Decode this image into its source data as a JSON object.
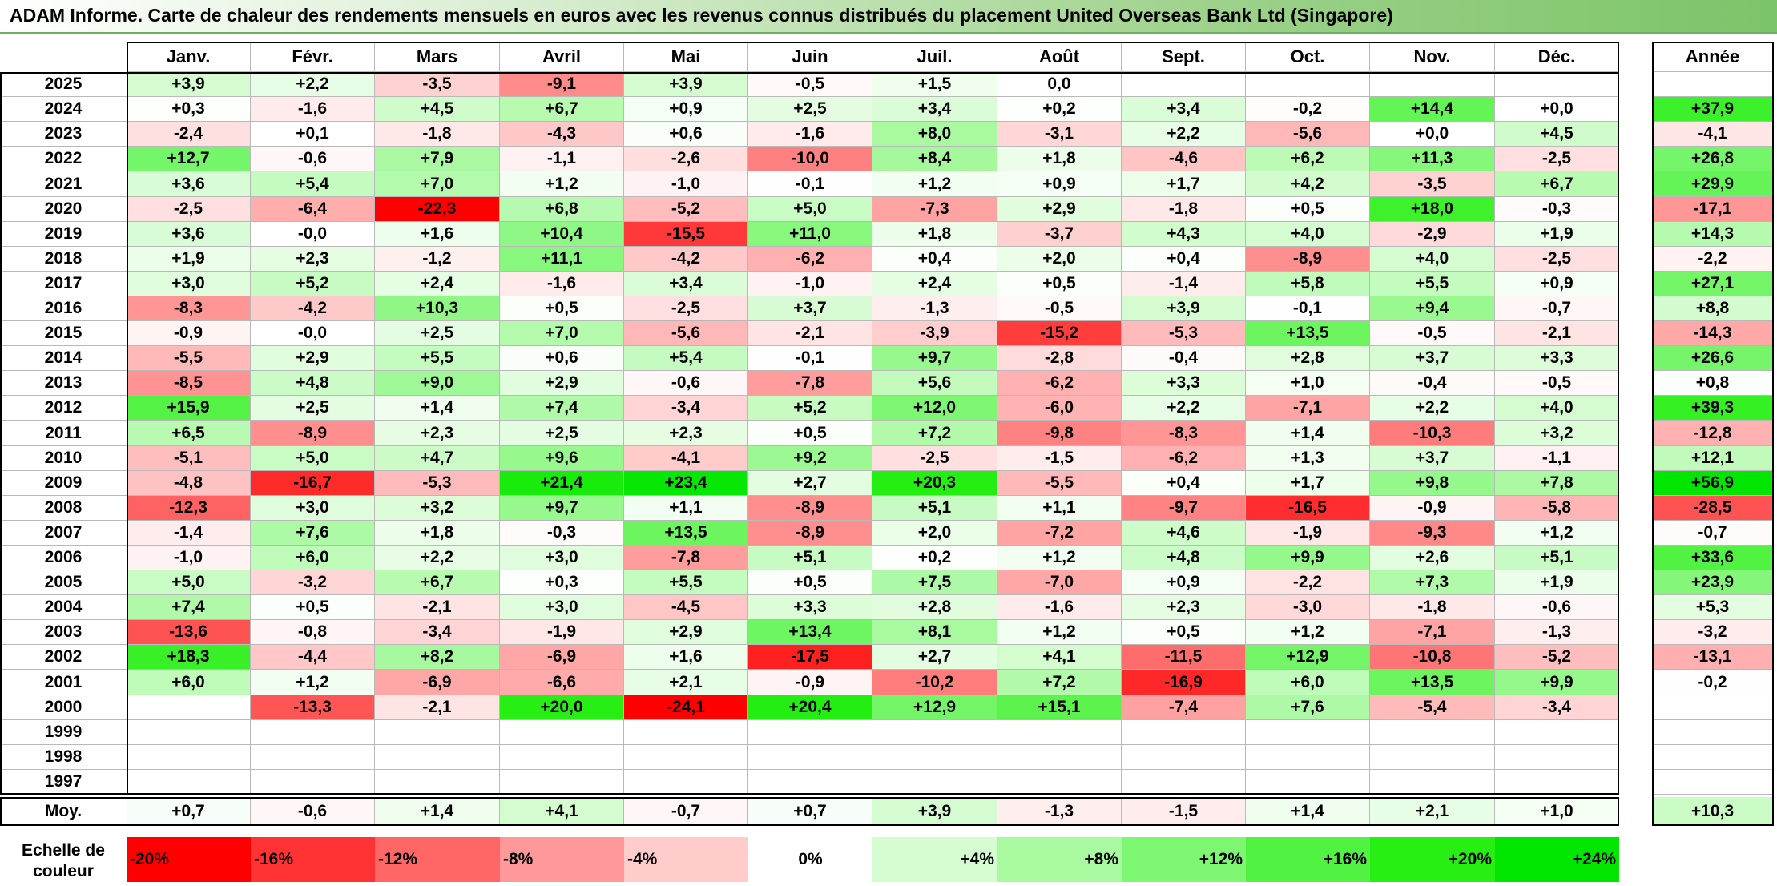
{
  "title": "ADAM Informe. Carte de chaleur des rendements mensuels en euros avec les revenus connus distribués du placement United Overseas Bank Ltd (Singapore)",
  "chart_data": {
    "type": "heatmap",
    "columns": [
      "Janv.",
      "Févr.",
      "Mars",
      "Avril",
      "Mai",
      "Juin",
      "Juil.",
      "Août",
      "Sept.",
      "Oct.",
      "Nov.",
      "Déc."
    ],
    "year_column_label": "Année",
    "average_label": "Moy.",
    "rows": [
      {
        "year": "2025",
        "months": [
          "+3,9",
          "+2,2",
          "-3,5",
          "-9,1",
          "+3,9",
          "-0,5",
          "+1,5",
          "0,0",
          "",
          "",
          "",
          ""
        ],
        "annual": ""
      },
      {
        "year": "2024",
        "months": [
          "+0,3",
          "-1,6",
          "+4,5",
          "+6,7",
          "+0,9",
          "+2,5",
          "+3,4",
          "+0,2",
          "+3,4",
          "-0,2",
          "+14,4",
          "+0,0"
        ],
        "annual": "+37,9"
      },
      {
        "year": "2023",
        "months": [
          "-2,4",
          "+0,1",
          "-1,8",
          "-4,3",
          "+0,6",
          "-1,6",
          "+8,0",
          "-3,1",
          "+2,2",
          "-5,6",
          "+0,0",
          "+4,5"
        ],
        "annual": "-4,1"
      },
      {
        "year": "2022",
        "months": [
          "+12,7",
          "-0,6",
          "+7,9",
          "-1,1",
          "-2,6",
          "-10,0",
          "+8,4",
          "+1,8",
          "-4,6",
          "+6,2",
          "+11,3",
          "-2,5"
        ],
        "annual": "+26,8"
      },
      {
        "year": "2021",
        "months": [
          "+3,6",
          "+5,4",
          "+7,0",
          "+1,2",
          "-1,0",
          "-0,1",
          "+1,2",
          "+0,9",
          "+1,7",
          "+4,2",
          "-3,5",
          "+6,7"
        ],
        "annual": "+29,9"
      },
      {
        "year": "2020",
        "months": [
          "-2,5",
          "-6,4",
          "-22,3",
          "+6,8",
          "-5,2",
          "+5,0",
          "-7,3",
          "+2,9",
          "-1,8",
          "+0,5",
          "+18,0",
          "-0,3"
        ],
        "annual": "-17,1"
      },
      {
        "year": "2019",
        "months": [
          "+3,6",
          "-0,0",
          "+1,6",
          "+10,4",
          "-15,5",
          "+11,0",
          "+1,8",
          "-3,7",
          "+4,3",
          "+4,0",
          "-2,9",
          "+1,9"
        ],
        "annual": "+14,3"
      },
      {
        "year": "2018",
        "months": [
          "+1,9",
          "+2,3",
          "-1,2",
          "+11,1",
          "-4,2",
          "-6,2",
          "+0,4",
          "+2,0",
          "+0,4",
          "-8,9",
          "+4,0",
          "-2,5"
        ],
        "annual": "-2,2"
      },
      {
        "year": "2017",
        "months": [
          "+3,0",
          "+5,2",
          "+2,4",
          "-1,6",
          "+3,4",
          "-1,0",
          "+2,4",
          "+0,5",
          "-1,4",
          "+5,8",
          "+5,5",
          "+0,9"
        ],
        "annual": "+27,1"
      },
      {
        "year": "2016",
        "months": [
          "-8,3",
          "-4,2",
          "+10,3",
          "+0,5",
          "-2,5",
          "+3,7",
          "-1,3",
          "-0,5",
          "+3,9",
          "-0,1",
          "+9,4",
          "-0,7"
        ],
        "annual": "+8,8"
      },
      {
        "year": "2015",
        "months": [
          "-0,9",
          "-0,0",
          "+2,5",
          "+7,0",
          "-5,6",
          "-2,1",
          "-3,9",
          "-15,2",
          "-5,3",
          "+13,5",
          "-0,5",
          "-2,1"
        ],
        "annual": "-14,3"
      },
      {
        "year": "2014",
        "months": [
          "-5,5",
          "+2,9",
          "+5,5",
          "+0,6",
          "+5,4",
          "-0,1",
          "+9,7",
          "-2,8",
          "-0,4",
          "+2,8",
          "+3,7",
          "+3,3"
        ],
        "annual": "+26,6"
      },
      {
        "year": "2013",
        "months": [
          "-8,5",
          "+4,8",
          "+9,0",
          "+2,9",
          "-0,6",
          "-7,8",
          "+5,6",
          "-6,2",
          "+3,3",
          "+1,0",
          "-0,4",
          "-0,5"
        ],
        "annual": "+0,8"
      },
      {
        "year": "2012",
        "months": [
          "+15,9",
          "+2,5",
          "+1,4",
          "+7,4",
          "-3,4",
          "+5,2",
          "+12,0",
          "-6,0",
          "+2,2",
          "-7,1",
          "+2,2",
          "+4,0"
        ],
        "annual": "+39,3"
      },
      {
        "year": "2011",
        "months": [
          "+6,5",
          "-8,9",
          "+2,3",
          "+2,5",
          "+2,3",
          "+0,5",
          "+7,2",
          "-9,8",
          "-8,3",
          "+1,4",
          "-10,3",
          "+3,2"
        ],
        "annual": "-12,8"
      },
      {
        "year": "2010",
        "months": [
          "-5,1",
          "+5,0",
          "+4,7",
          "+9,6",
          "-4,1",
          "+9,2",
          "-2,5",
          "-1,5",
          "-6,2",
          "+1,3",
          "+3,7",
          "-1,1"
        ],
        "annual": "+12,1"
      },
      {
        "year": "2009",
        "months": [
          "-4,8",
          "-16,7",
          "-5,3",
          "+21,4",
          "+23,4",
          "+2,7",
          "+20,3",
          "-5,5",
          "+0,4",
          "+1,7",
          "+9,8",
          "+7,8"
        ],
        "annual": "+56,9"
      },
      {
        "year": "2008",
        "months": [
          "-12,3",
          "+3,0",
          "+3,2",
          "+9,7",
          "+1,1",
          "-8,9",
          "+5,1",
          "+1,1",
          "-9,7",
          "-16,5",
          "-0,9",
          "-5,8"
        ],
        "annual": "-28,5"
      },
      {
        "year": "2007",
        "months": [
          "-1,4",
          "+7,6",
          "+1,8",
          "-0,3",
          "+13,5",
          "-8,9",
          "+2,0",
          "-7,2",
          "+4,6",
          "-1,9",
          "-9,3",
          "+1,2"
        ],
        "annual": "-0,7"
      },
      {
        "year": "2006",
        "months": [
          "-1,0",
          "+6,0",
          "+2,2",
          "+3,0",
          "-7,8",
          "+5,1",
          "+0,2",
          "+1,2",
          "+4,8",
          "+9,9",
          "+2,6",
          "+5,1"
        ],
        "annual": "+33,6"
      },
      {
        "year": "2005",
        "months": [
          "+5,0",
          "-3,2",
          "+6,7",
          "+0,3",
          "+5,5",
          "+0,5",
          "+7,5",
          "-7,0",
          "+0,9",
          "-2,2",
          "+7,3",
          "+1,9"
        ],
        "annual": "+23,9"
      },
      {
        "year": "2004",
        "months": [
          "+7,4",
          "+0,5",
          "-2,1",
          "+3,0",
          "-4,5",
          "+3,3",
          "+2,8",
          "-1,6",
          "+2,3",
          "-3,0",
          "-1,8",
          "-0,6"
        ],
        "annual": "+5,3"
      },
      {
        "year": "2003",
        "months": [
          "-13,6",
          "-0,8",
          "-3,4",
          "-1,9",
          "+2,9",
          "+13,4",
          "+8,1",
          "+1,2",
          "+0,5",
          "+1,2",
          "-7,1",
          "-1,3"
        ],
        "annual": "-3,2"
      },
      {
        "year": "2002",
        "months": [
          "+18,3",
          "-4,4",
          "+8,2",
          "-6,9",
          "+1,6",
          "-17,5",
          "+2,7",
          "+4,1",
          "-11,5",
          "+12,9",
          "-10,8",
          "-5,2"
        ],
        "annual": "-13,1"
      },
      {
        "year": "2001",
        "months": [
          "+6,0",
          "+1,2",
          "-6,9",
          "-6,6",
          "+2,1",
          "-0,9",
          "-10,2",
          "+7,2",
          "-16,9",
          "+6,0",
          "+13,5",
          "+9,9"
        ],
        "annual": "-0,2"
      },
      {
        "year": "2000",
        "months": [
          "",
          "-13,3",
          "-2,1",
          "+20,0",
          "-24,1",
          "+20,4",
          "+12,9",
          "+15,1",
          "-7,4",
          "+7,6",
          "-5,4",
          "-3,4"
        ],
        "annual": ""
      },
      {
        "year": "1999",
        "months": [
          "",
          "",
          "",
          "",
          "",
          "",
          "",
          "",
          "",
          "",
          "",
          ""
        ],
        "annual": ""
      },
      {
        "year": "1998",
        "months": [
          "",
          "",
          "",
          "",
          "",
          "",
          "",
          "",
          "",
          "",
          "",
          ""
        ],
        "annual": ""
      },
      {
        "year": "1997",
        "months": [
          "",
          "",
          "",
          "",
          "",
          "",
          "",
          "",
          "",
          "",
          "",
          ""
        ],
        "annual": ""
      }
    ],
    "averages": {
      "months": [
        "+0,7",
        "-0,6",
        "+1,4",
        "+4,1",
        "-0,7",
        "+0,7",
        "+3,9",
        "-1,3",
        "-1,5",
        "+1,4",
        "+2,1",
        "+1,0"
      ],
      "annual": "+10,3"
    },
    "color_scale": {
      "label": "Echelle de couleur",
      "stops": [
        {
          "label": "-20%",
          "value": -20,
          "color": "#ff0000"
        },
        {
          "label": "-16%",
          "value": -16,
          "color": "#ff3333"
        },
        {
          "label": "-12%",
          "value": -12,
          "color": "#ff6666"
        },
        {
          "label": "-8%",
          "value": -8,
          "color": "#ff9999"
        },
        {
          "label": "-4%",
          "value": -4,
          "color": "#ffcccc"
        },
        {
          "label": "0%",
          "value": 0,
          "color": "#ffffff"
        },
        {
          "label": "+4%",
          "value": 4,
          "color": "#d4fcd0"
        },
        {
          "label": "+8%",
          "value": 8,
          "color": "#a9f9a1"
        },
        {
          "label": "+12%",
          "value": 12,
          "color": "#7df672"
        },
        {
          "label": "+16%",
          "value": 16,
          "color": "#52f243"
        },
        {
          "label": "+20%",
          "value": 20,
          "color": "#27ef14"
        },
        {
          "label": "+24%",
          "value": 24,
          "color": "#00e600"
        }
      ]
    }
  }
}
